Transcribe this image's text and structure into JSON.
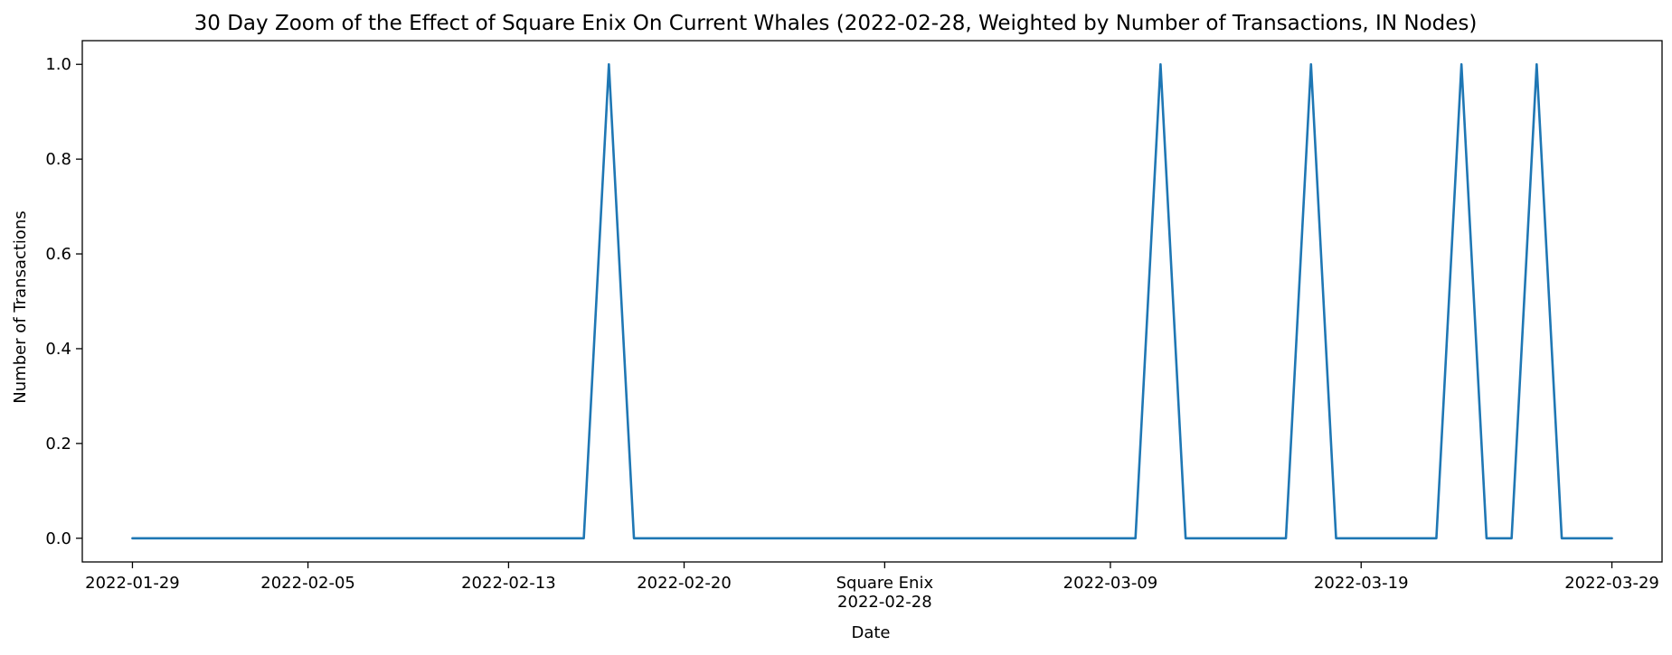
{
  "chart_data": {
    "type": "line",
    "title": "30 Day Zoom of the Effect of Square Enix On Current Whales (2022-02-28, Weighted by Number of Transactions, IN Nodes)",
    "xlabel": "Date",
    "ylabel": "Number of Transactions",
    "grid": false,
    "legend": "none",
    "xlim": [
      "2022-01-27",
      "2022-03-31"
    ],
    "ylim": [
      -0.05,
      1.05
    ],
    "yticks": [
      0.0,
      0.2,
      0.4,
      0.6,
      0.8,
      1.0
    ],
    "ytick_labels": [
      "0.0",
      "0.2",
      "0.4",
      "0.6",
      "0.8",
      "1.0"
    ],
    "xticks": [
      "2022-01-29",
      "2022-02-05",
      "2022-02-13",
      "2022-02-20",
      "2022-02-28",
      "2022-03-09",
      "2022-03-19",
      "2022-03-29"
    ],
    "xtick_labels": [
      "2022-01-29",
      "2022-02-05",
      "2022-02-13",
      "2022-02-20",
      "Square Enix\n2022-02-28",
      "2022-03-09",
      "2022-03-19",
      "2022-03-29"
    ],
    "series": [
      {
        "color": "#1f77b4",
        "points": [
          {
            "x": "2022-01-29",
            "y": 0
          },
          {
            "x": "2022-02-16",
            "y": 0
          },
          {
            "x": "2022-02-17",
            "y": 1
          },
          {
            "x": "2022-02-18",
            "y": 0
          },
          {
            "x": "2022-03-10",
            "y": 0
          },
          {
            "x": "2022-03-11",
            "y": 1
          },
          {
            "x": "2022-03-12",
            "y": 0
          },
          {
            "x": "2022-03-16",
            "y": 0
          },
          {
            "x": "2022-03-17",
            "y": 1
          },
          {
            "x": "2022-03-18",
            "y": 0
          },
          {
            "x": "2022-03-22",
            "y": 0
          },
          {
            "x": "2022-03-23",
            "y": 1
          },
          {
            "x": "2022-03-24",
            "y": 0
          },
          {
            "x": "2022-03-25",
            "y": 0
          },
          {
            "x": "2022-03-26",
            "y": 1
          },
          {
            "x": "2022-03-27",
            "y": 0
          },
          {
            "x": "2022-03-29",
            "y": 0
          }
        ]
      }
    ]
  }
}
